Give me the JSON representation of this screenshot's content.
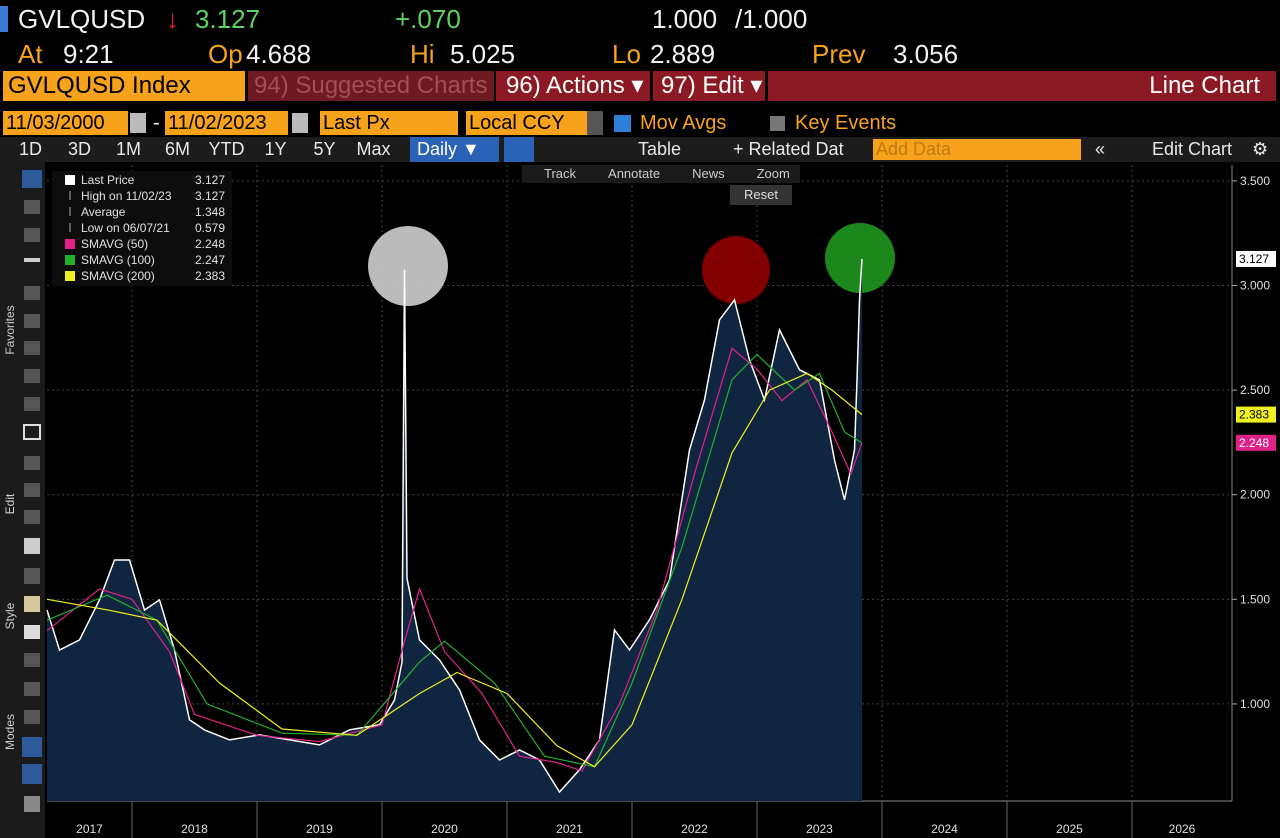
{
  "header": {
    "ticker": "GVLQUSD",
    "arrow": "↓",
    "last": 3.127,
    "change": "+.070",
    "ratio": "1.000",
    "ratio_den": "/1.000",
    "at_label": "At",
    "at": "9:21",
    "open_label": "Op",
    "open": 4.688,
    "high_label": "Hi",
    "high": 5.025,
    "low_label": "Lo",
    "low": 2.889,
    "prev_label": "Prev",
    "prev": 3.056
  },
  "menu": {
    "security": "GVLQUSD Index",
    "suggested": "94) Suggested Charts",
    "actions": "96) Actions ▾",
    "edit": "97) Edit ▾",
    "chart_type": "Line Chart"
  },
  "controls": {
    "start_date": "11/03/2000",
    "dash": "-",
    "end_date": "11/02/2023",
    "field": "Last Px",
    "currency": "Local CCY",
    "mov_avgs": "Mov Avgs",
    "key_events": "Key Events"
  },
  "periods": [
    "1D",
    "3D",
    "1M",
    "6M",
    "YTD",
    "1Y",
    "5Y",
    "Max"
  ],
  "toolbar": {
    "frequency": "Daily ▼",
    "table": "Table",
    "related": "+ Related Dat",
    "add_data": "Add Data",
    "edit_chart": "Edit Chart"
  },
  "chart_tools": [
    "Track",
    "Annotate",
    "News",
    "Zoom"
  ],
  "reset": "Reset",
  "side_labels": [
    "Favorites",
    "Edit",
    "Style",
    "Modes"
  ],
  "chart_data": {
    "type": "line",
    "xlim": [
      2017.32,
      2026.8
    ],
    "xticks": [
      2017,
      2018,
      2019,
      2020,
      2021,
      2022,
      2023,
      2024,
      2025,
      2026
    ],
    "ylim": [
      0.536,
      3.576
    ],
    "yticks": [
      {
        "value": 1,
        "label": "1.000"
      },
      {
        "value": 1.5,
        "label": "1.500"
      },
      {
        "value": 2,
        "label": "2.000"
      },
      {
        "value": 2.5,
        "label": "2.500"
      },
      {
        "value": 3,
        "label": "3.000"
      },
      {
        "value": 3.5,
        "label": "3.500"
      }
    ],
    "grid": true,
    "area_color": "#0f2540",
    "series": [
      {
        "name": "Last Price",
        "color": "#ffffff",
        "tag": true,
        "x": [
          2017.32,
          2017.42,
          2017.58,
          2017.74,
          2017.86,
          2017.98,
          2018.1,
          2018.22,
          2018.34,
          2018.46,
          2018.58,
          2018.78,
          2019.02,
          2019.26,
          2019.5,
          2019.74,
          2019.98,
          2020.1,
          2020.16,
          2020.18,
          2020.2,
          2020.3,
          2020.46,
          2020.62,
          2020.78,
          2020.94,
          2021.1,
          2021.26,
          2021.42,
          2021.58,
          2021.74,
          2021.86,
          2021.98,
          2022.14,
          2022.3,
          2022.46,
          2022.58,
          2022.7,
          2022.82,
          2022.94,
          2023.06,
          2023.18,
          2023.34,
          2023.5,
          2023.62,
          2023.7,
          2023.78,
          2023.8,
          2023.82,
          2023.84
        ],
        "values": [
          1.449,
          1.258,
          1.306,
          1.497,
          1.688,
          1.688,
          1.449,
          1.497,
          1.258,
          0.924,
          0.876,
          0.828,
          0.852,
          0.828,
          0.804,
          0.876,
          0.9,
          1.019,
          1.2,
          3.075,
          1.6,
          1.306,
          1.21,
          1.067,
          0.828,
          0.732,
          0.78,
          0.732,
          0.579,
          0.685,
          0.828,
          1.354,
          1.258,
          1.402,
          1.593,
          2.214,
          2.453,
          2.836,
          2.931,
          2.644,
          2.453,
          2.788,
          2.597,
          2.549,
          2.166,
          1.975,
          2.214,
          2.549,
          2.931,
          3.127
        ]
      },
      {
        "name": "SMAVG (50)",
        "color": "#e0218a",
        "tag": true,
        "x": [
          2017.32,
          2017.74,
          2018.0,
          2018.3,
          2018.5,
          2019.0,
          2019.5,
          2020.0,
          2020.18,
          2020.3,
          2020.5,
          2020.8,
          2021.1,
          2021.4,
          2021.6,
          2021.9,
          2022.2,
          2022.5,
          2022.8,
          2023.0,
          2023.2,
          2023.4,
          2023.6,
          2023.75,
          2023.84
        ],
        "values": [
          1.35,
          1.55,
          1.5,
          1.25,
          0.95,
          0.85,
          0.82,
          0.9,
          1.3,
          1.55,
          1.25,
          1.05,
          0.75,
          0.72,
          0.68,
          1.0,
          1.45,
          2.1,
          2.7,
          2.6,
          2.45,
          2.55,
          2.3,
          2.1,
          2.248
        ]
      },
      {
        "name": "SMAVG (100)",
        "color": "#22b02a",
        "tag": false,
        "x": [
          2017.32,
          2017.8,
          2018.2,
          2018.6,
          2019.2,
          2019.8,
          2020.3,
          2020.5,
          2020.9,
          2021.3,
          2021.7,
          2022.0,
          2022.4,
          2022.8,
          2023.0,
          2023.3,
          2023.5,
          2023.7,
          2023.84
        ],
        "values": [
          1.4,
          1.52,
          1.4,
          1.0,
          0.86,
          0.85,
          1.2,
          1.3,
          1.1,
          0.75,
          0.7,
          1.1,
          1.75,
          2.55,
          2.67,
          2.5,
          2.58,
          2.3,
          2.247
        ]
      },
      {
        "name": "SMAVG (200)",
        "color": "#f0f020",
        "tag": true,
        "x": [
          2017.32,
          2017.8,
          2018.2,
          2018.7,
          2019.2,
          2019.8,
          2020.3,
          2020.6,
          2021.0,
          2021.4,
          2021.7,
          2022.0,
          2022.4,
          2022.8,
          2023.1,
          2023.4,
          2023.6,
          2023.84
        ],
        "values": [
          1.5,
          1.45,
          1.4,
          1.1,
          0.88,
          0.85,
          1.05,
          1.15,
          1.05,
          0.8,
          0.7,
          0.9,
          1.5,
          2.2,
          2.5,
          2.58,
          2.5,
          2.383
        ]
      }
    ],
    "stats": [
      {
        "label": "High on 11/02/23",
        "value": 3.127
      },
      {
        "label": "Average",
        "value": 1.348
      },
      {
        "label": "Low on 06/07/21",
        "value": 0.579
      }
    ]
  }
}
